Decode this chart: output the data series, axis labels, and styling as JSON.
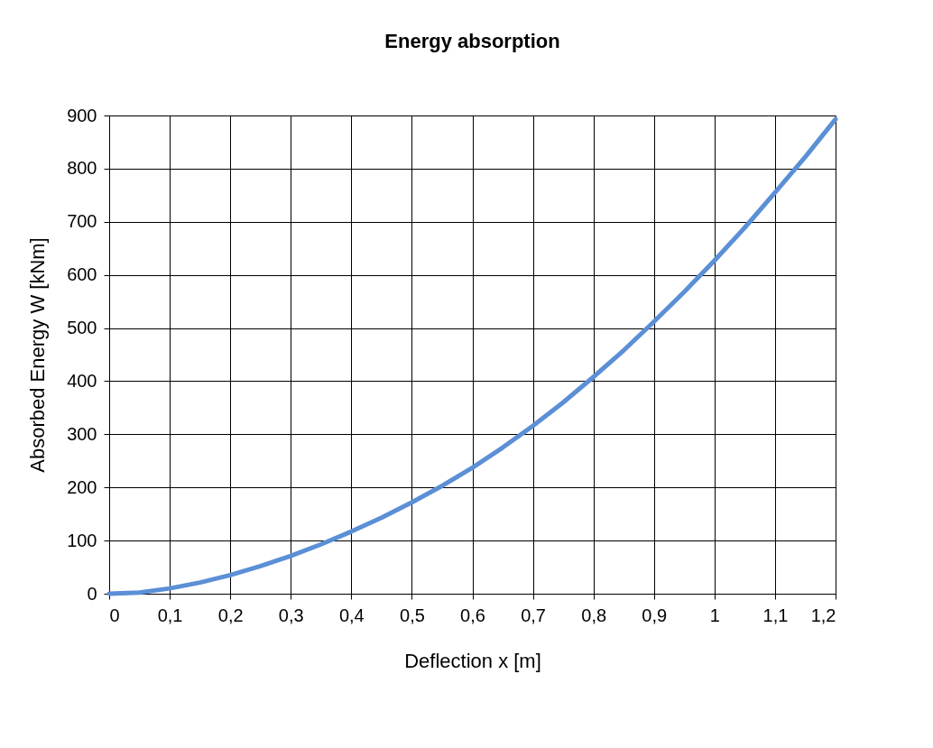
{
  "chart_data": {
    "type": "line",
    "title": "Energy absorption",
    "xlabel": "Deflection x [m]",
    "ylabel": "Absorbed Energy  W  [kNm]",
    "x": [
      0,
      0.05,
      0.1,
      0.15,
      0.2,
      0.25,
      0.3,
      0.35,
      0.4,
      0.45,
      0.5,
      0.55,
      0.6,
      0.65,
      0.7,
      0.75,
      0.8,
      0.85,
      0.9,
      0.95,
      1.0,
      1.05,
      1.1,
      1.15,
      1.2
    ],
    "series": [
      {
        "color": "#5b8fd6",
        "values": [
          0,
          2,
          10,
          21,
          35,
          52,
          71,
          93,
          117,
          143,
          172,
          203,
          237,
          275,
          316,
          360,
          408,
          458,
          512,
          568,
          627,
          689,
          755,
          822,
          893
        ]
      }
    ],
    "xlim": [
      0,
      1.2
    ],
    "ylim": [
      0,
      900
    ],
    "xticks": [
      0,
      {
        "value": 0.1,
        "label": "0,1"
      },
      {
        "value": 0.2,
        "label": "0,2"
      },
      {
        "value": 0.3,
        "label": "0,3"
      },
      {
        "value": 0.4,
        "label": "0,4"
      },
      {
        "value": 0.5,
        "label": "0,5"
      },
      {
        "value": 0.6,
        "label": "0,6"
      },
      {
        "value": 0.7,
        "label": "0,7"
      },
      {
        "value": 0.8,
        "label": "0,8"
      },
      {
        "value": 0.9,
        "label": "0,9"
      },
      1,
      {
        "value": 1.1,
        "label": "1,1"
      },
      {
        "value": 1.2,
        "label": "1,2"
      }
    ],
    "yticks": [
      0,
      100,
      200,
      300,
      400,
      500,
      600,
      700,
      800,
      900
    ],
    "grid": true,
    "legend": false,
    "marker": "none",
    "line_style": "solid"
  }
}
